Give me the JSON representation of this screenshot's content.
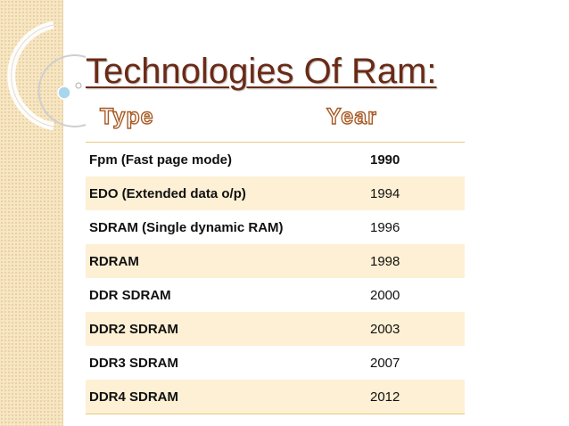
{
  "slide": {
    "title": "Technologies Of Ram:",
    "column_headers": {
      "type": "Type",
      "year": "Year"
    }
  },
  "table": {
    "rows": [
      {
        "type": "Fpm (Fast page mode)",
        "year": "1990"
      },
      {
        "type": "EDO (Extended data o/p)",
        "year": "1994"
      },
      {
        "type": "SDRAM (Single dynamic RAM)",
        "year": "1996"
      },
      {
        "type": "RDRAM",
        "year": "1998"
      },
      {
        "type": "DDR SDRAM",
        "year": "2000"
      },
      {
        "type": "DDR2 SDRAM",
        "year": "2003"
      },
      {
        "type": "DDR3 SDRAM",
        "year": "2007"
      },
      {
        "type": "DDR4 SDRAM",
        "year": "2012"
      }
    ]
  },
  "theme": {
    "title_color": "#6b2a16",
    "header_outline_color": "#a85a23",
    "row_stripe_color": "#fdf0d4",
    "strip_color": "#f7e6c2"
  }
}
